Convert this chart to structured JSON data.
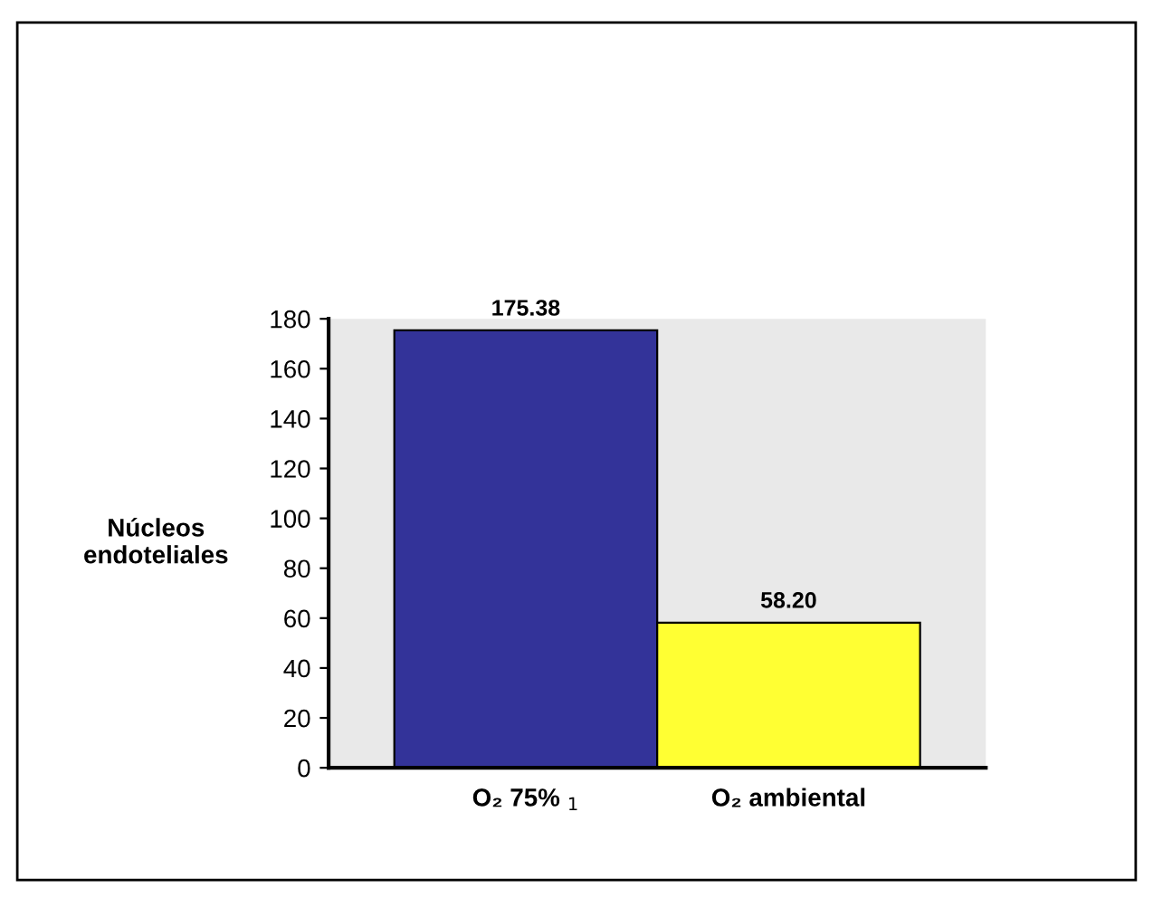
{
  "chart_data": {
    "type": "bar",
    "ylabel": "Núcleos\nendoteliales",
    "categories": [
      "O₂ 75% $_{1}$",
      "O₂ ambiental"
    ],
    "values": [
      175.38,
      58.2
    ],
    "value_labels": [
      "175.38",
      "58.20"
    ],
    "colors": [
      "#333399",
      "#ffff33"
    ],
    "ylim": [
      0,
      180
    ],
    "yticks": [
      0,
      20,
      40,
      60,
      80,
      100,
      120,
      140,
      160,
      180
    ],
    "grid": false,
    "legend": false
  }
}
